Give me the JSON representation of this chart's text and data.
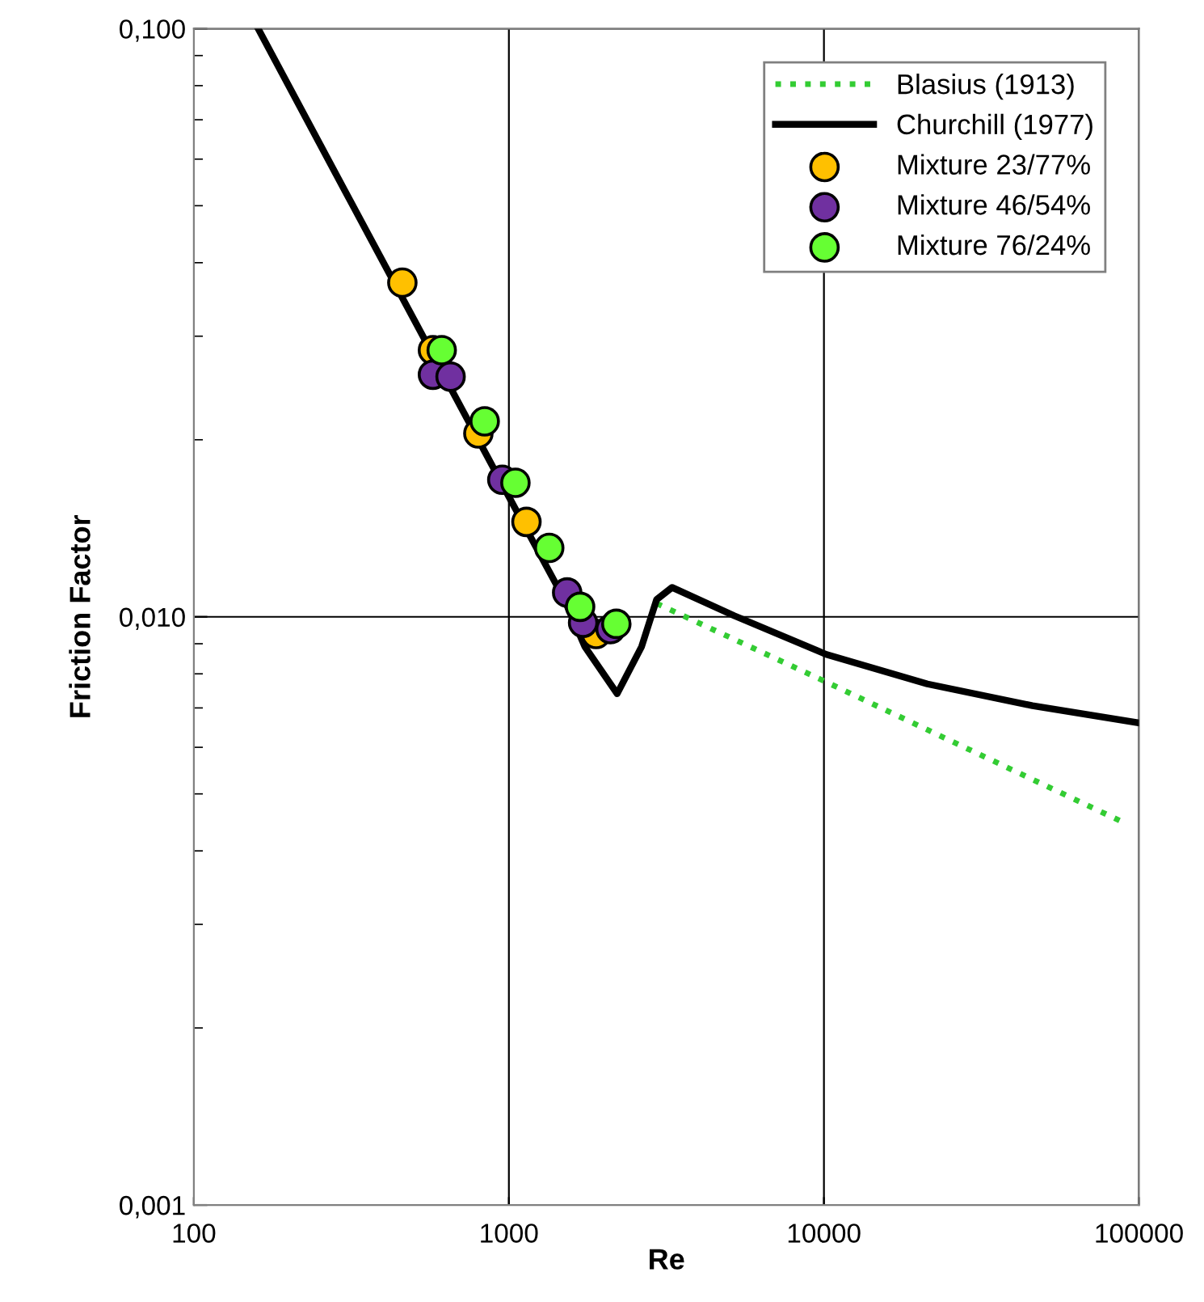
{
  "chart_data": {
    "type": "scatter",
    "xlabel": "Re",
    "ylabel": "Friction Factor",
    "log": "xy",
    "xlim": [
      100,
      100000
    ],
    "ylim": [
      0.001,
      0.1
    ],
    "xticks": [
      100,
      1000,
      10000,
      100000
    ],
    "yticks": [
      {
        "value": 0.001,
        "label": "0,001"
      },
      {
        "value": 0.01,
        "label": "0,010"
      },
      {
        "value": 0.1,
        "label": "0,100"
      }
    ],
    "grid": true,
    "legend": "top right",
    "series": [
      {
        "name": "Blasius (1913)",
        "type": "line",
        "line_style": "dotted",
        "marker": "none",
        "color": "#33cc33",
        "x": [
          2944,
          10000,
          87900
        ],
        "values": [
          0.01054,
          0.00778,
          0.00449
        ]
      },
      {
        "name": "Churchill (1977)",
        "type": "line",
        "line_style": "solid",
        "marker": "none",
        "color": "#000000",
        "x": [
          160,
          300,
          500,
          1000,
          1500,
          1742,
          2206,
          2638,
          2944,
          3296,
          5200,
          10180,
          21300,
          45900,
          100000
        ],
        "values": [
          0.1,
          0.0533,
          0.032,
          0.016,
          0.0107,
          0.0089,
          0.0074,
          0.0089,
          0.0107,
          0.01122,
          0.01004,
          0.00863,
          0.00769,
          0.00706,
          0.0066
        ]
      },
      {
        "name": "Mixture 23/77%",
        "marker": "circle",
        "color": "#ffc000",
        "x": [
          459,
          574,
          800,
          1137,
          1892
        ],
        "values": [
          0.037,
          0.0284,
          0.0205,
          0.0145,
          0.00935
        ]
      },
      {
        "name": "Mixture 46/54%",
        "marker": "circle",
        "color": "#7030a0",
        "x": [
          574,
          653,
          953,
          1531,
          1720,
          2103
        ],
        "values": [
          0.0258,
          0.0256,
          0.0171,
          0.011,
          0.00977,
          0.00953
        ]
      },
      {
        "name": "Mixture 76/24%",
        "marker": "circle",
        "color": "#66ff33",
        "x": [
          612,
          838,
          1049,
          1343,
          1683,
          2193
        ],
        "values": [
          0.0284,
          0.0215,
          0.0169,
          0.0131,
          0.0104,
          0.00973
        ]
      }
    ]
  }
}
